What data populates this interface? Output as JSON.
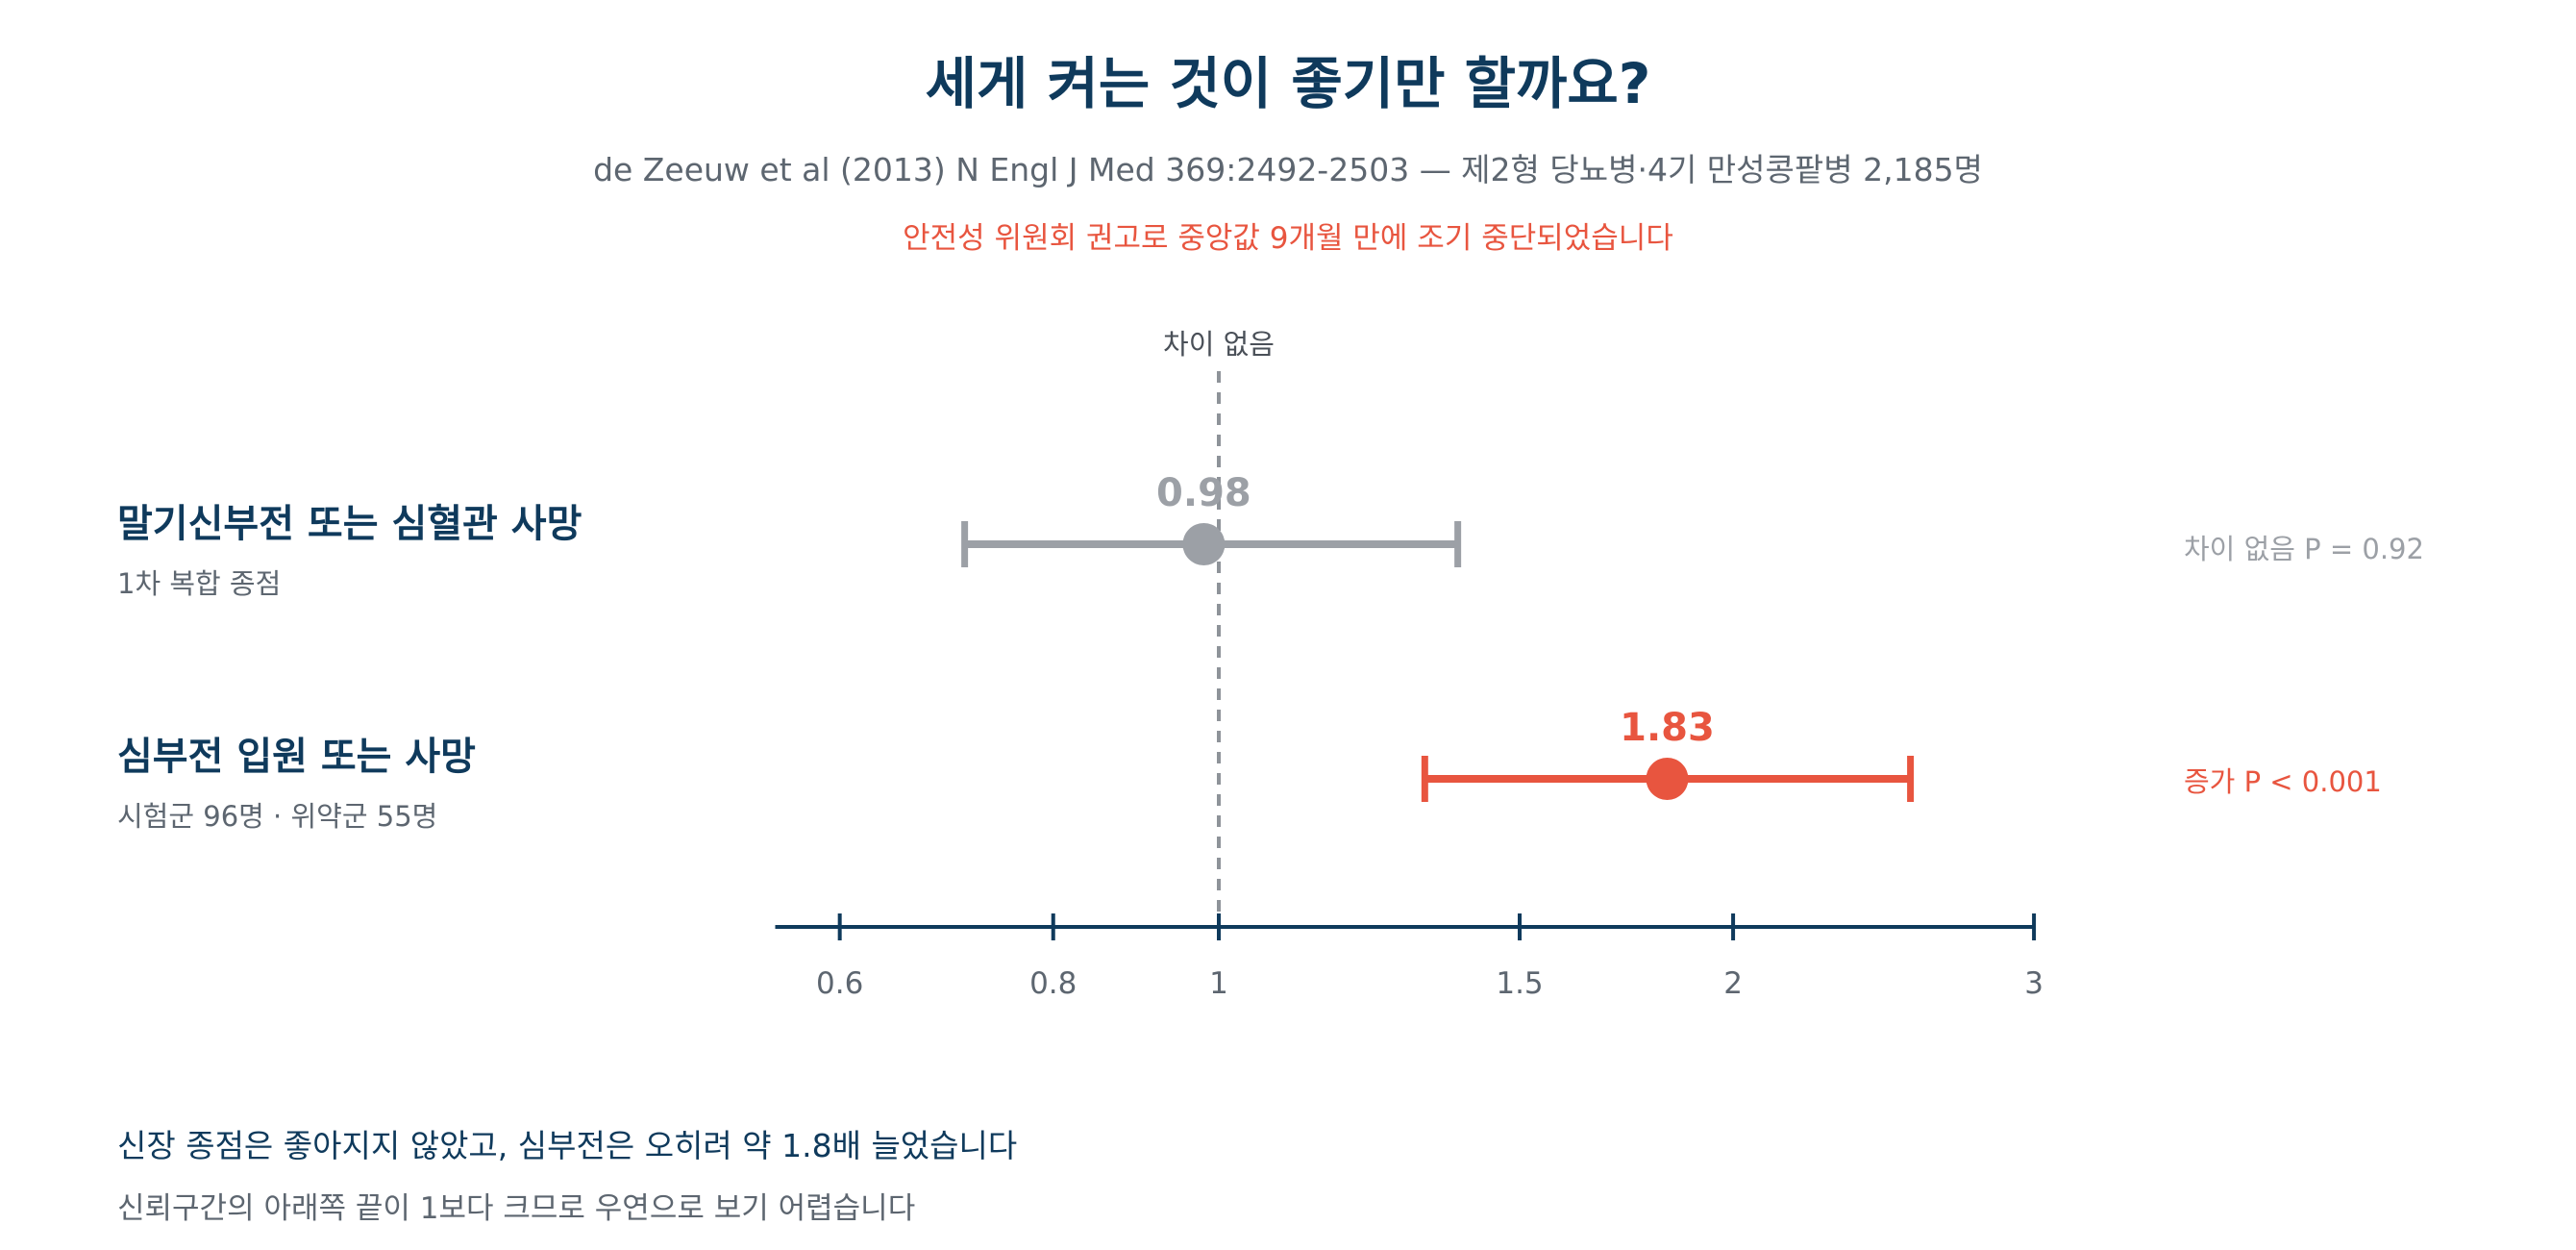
{
  "header": {
    "title": "세게 켜는 것이 좋기만 할까요?",
    "subtitle": "de Zeeuw et al (2013) N Engl J Med 369:2492-2503 — 제2형 당뇨병·4기 만성콩팥병 2,185명",
    "note": "안전성 위원회 권고로 중앙값 9개월 만에 조기 중단되었습니다"
  },
  "colors": {
    "navy": "#0f3a5c",
    "gray": "#9ca0a6",
    "red": "#e8553f",
    "text_gray": "#5d6670"
  },
  "chart_data": {
    "type": "forest",
    "scale": "log",
    "reference_value": 1,
    "reference_label": "차이 없음",
    "xlim": [
      0.55,
      3.0
    ],
    "x_ticks": [
      0.6,
      0.8,
      1,
      1.5,
      2,
      3
    ],
    "x_tick_labels": [
      "0.6",
      "0.8",
      "1",
      "1.5",
      "2",
      "3"
    ],
    "rows": [
      {
        "label": "말기신부전 또는 심혈관 사망",
        "sublabel": "1차 복합 종점",
        "estimate": 0.98,
        "estimate_label": "0.98",
        "ci_low": 0.71,
        "ci_high": 1.38,
        "p_text": "차이 없음 P = 0.92",
        "color": "#9ca0a6"
      },
      {
        "label": "심부전 입원 또는 사망",
        "sublabel": "시험군 96명 · 위약군 55명",
        "estimate": 1.83,
        "estimate_label": "1.83",
        "ci_low": 1.32,
        "ci_high": 2.54,
        "p_text": "증가 P < 0.001",
        "color": "#e8553f"
      }
    ]
  },
  "footer": {
    "main": "신장 종점은 좋아지지 않았고, 심부전은 오히려 약 1.8배 늘었습니다",
    "sub": "신뢰구간의 아래쪽 끝이 1보다 크므로 우연으로 보기 어렵습니다"
  }
}
